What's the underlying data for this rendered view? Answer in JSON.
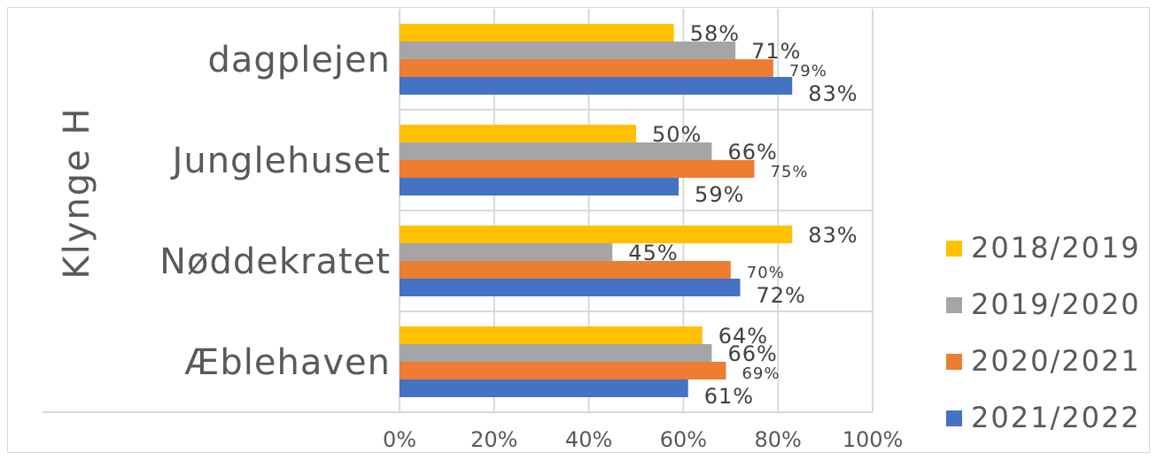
{
  "chart_data": {
    "type": "bar",
    "orientation": "horizontal",
    "group_label": "Klynge H",
    "categories": [
      "dagplejen",
      "Junglehuset",
      "Nøddekratet",
      "Æblehaven"
    ],
    "series": [
      {
        "name": "2018/2019",
        "color": "#FFC000",
        "values": [
          58,
          50,
          83,
          64
        ],
        "labels": [
          "58%",
          "50%",
          "83%",
          "64%"
        ]
      },
      {
        "name": "2019/2020",
        "color": "#A5A5A5",
        "values": [
          71,
          66,
          45,
          66
        ],
        "labels": [
          "71%",
          "66%",
          "45%",
          "66%"
        ]
      },
      {
        "name": "2020/2021",
        "color": "#ED7D31",
        "values": [
          79,
          75,
          70,
          69
        ],
        "labels": [
          "79%",
          "75%",
          "70%",
          "69%"
        ]
      },
      {
        "name": "2021/2022",
        "color": "#4472C4",
        "values": [
          83,
          59,
          72,
          61
        ],
        "labels": [
          "83%",
          "59%",
          "72%",
          "61%"
        ]
      }
    ],
    "xlim": [
      0,
      100
    ],
    "x_ticks": [
      "0%",
      "20%",
      "40%",
      "60%",
      "80%",
      "100%"
    ],
    "grid": true,
    "legend": "right"
  }
}
